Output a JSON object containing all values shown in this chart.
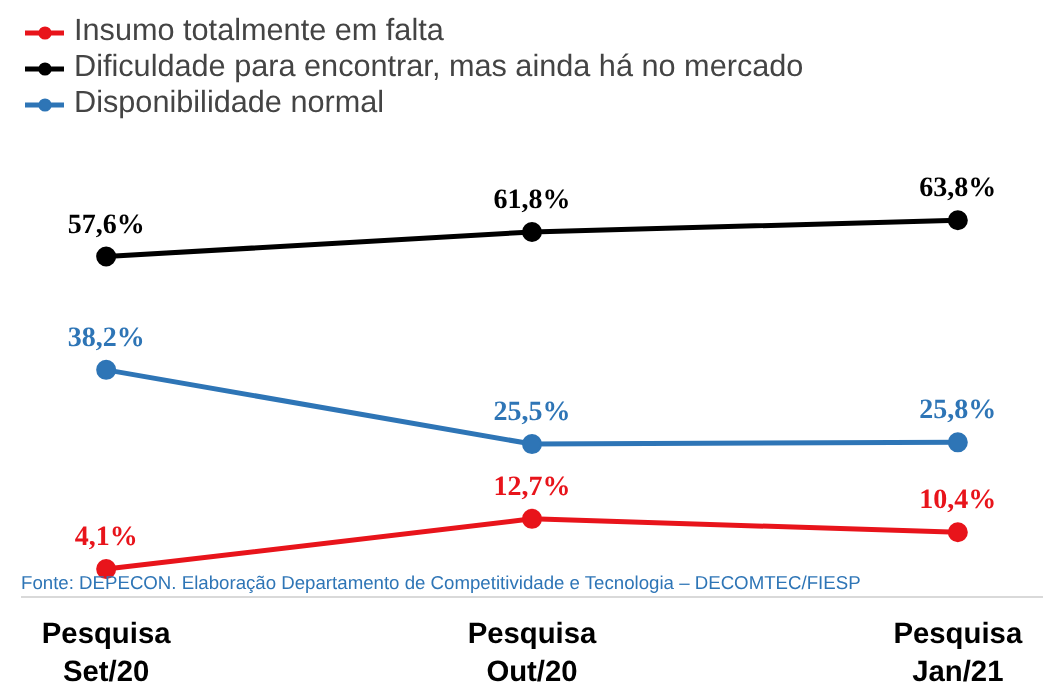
{
  "chart_data": {
    "type": "line",
    "categories": [
      "Pesquisa\nSet/20",
      "Pesquisa\nOut/20",
      "Pesquisa\nJan/21"
    ],
    "series": [
      {
        "name": "Insumo totalmente em falta",
        "color": "#e8141b",
        "values": [
          4.1,
          12.7,
          10.4
        ],
        "value_labels": [
          "4,1%",
          "12,7%",
          "10,4%"
        ]
      },
      {
        "name": "Dificuldade para encontrar, mas ainda há no mercado",
        "color": "#000000",
        "values": [
          57.6,
          61.8,
          63.8
        ],
        "value_labels": [
          "57,6%",
          "61,8%",
          "63,8%"
        ]
      },
      {
        "name": "Disponibilidade normal",
        "color": "#2e75b6",
        "values": [
          38.2,
          25.5,
          25.8
        ],
        "value_labels": [
          "38,2%",
          "25,5%",
          "25,8%"
        ]
      }
    ],
    "marker": "circle",
    "legend": "top left",
    "annotations": [
      "Fonte: DEPECON. Elaboração Departamento de Competitividade e Tecnologia – DECOMTEC/FIESP"
    ]
  }
}
